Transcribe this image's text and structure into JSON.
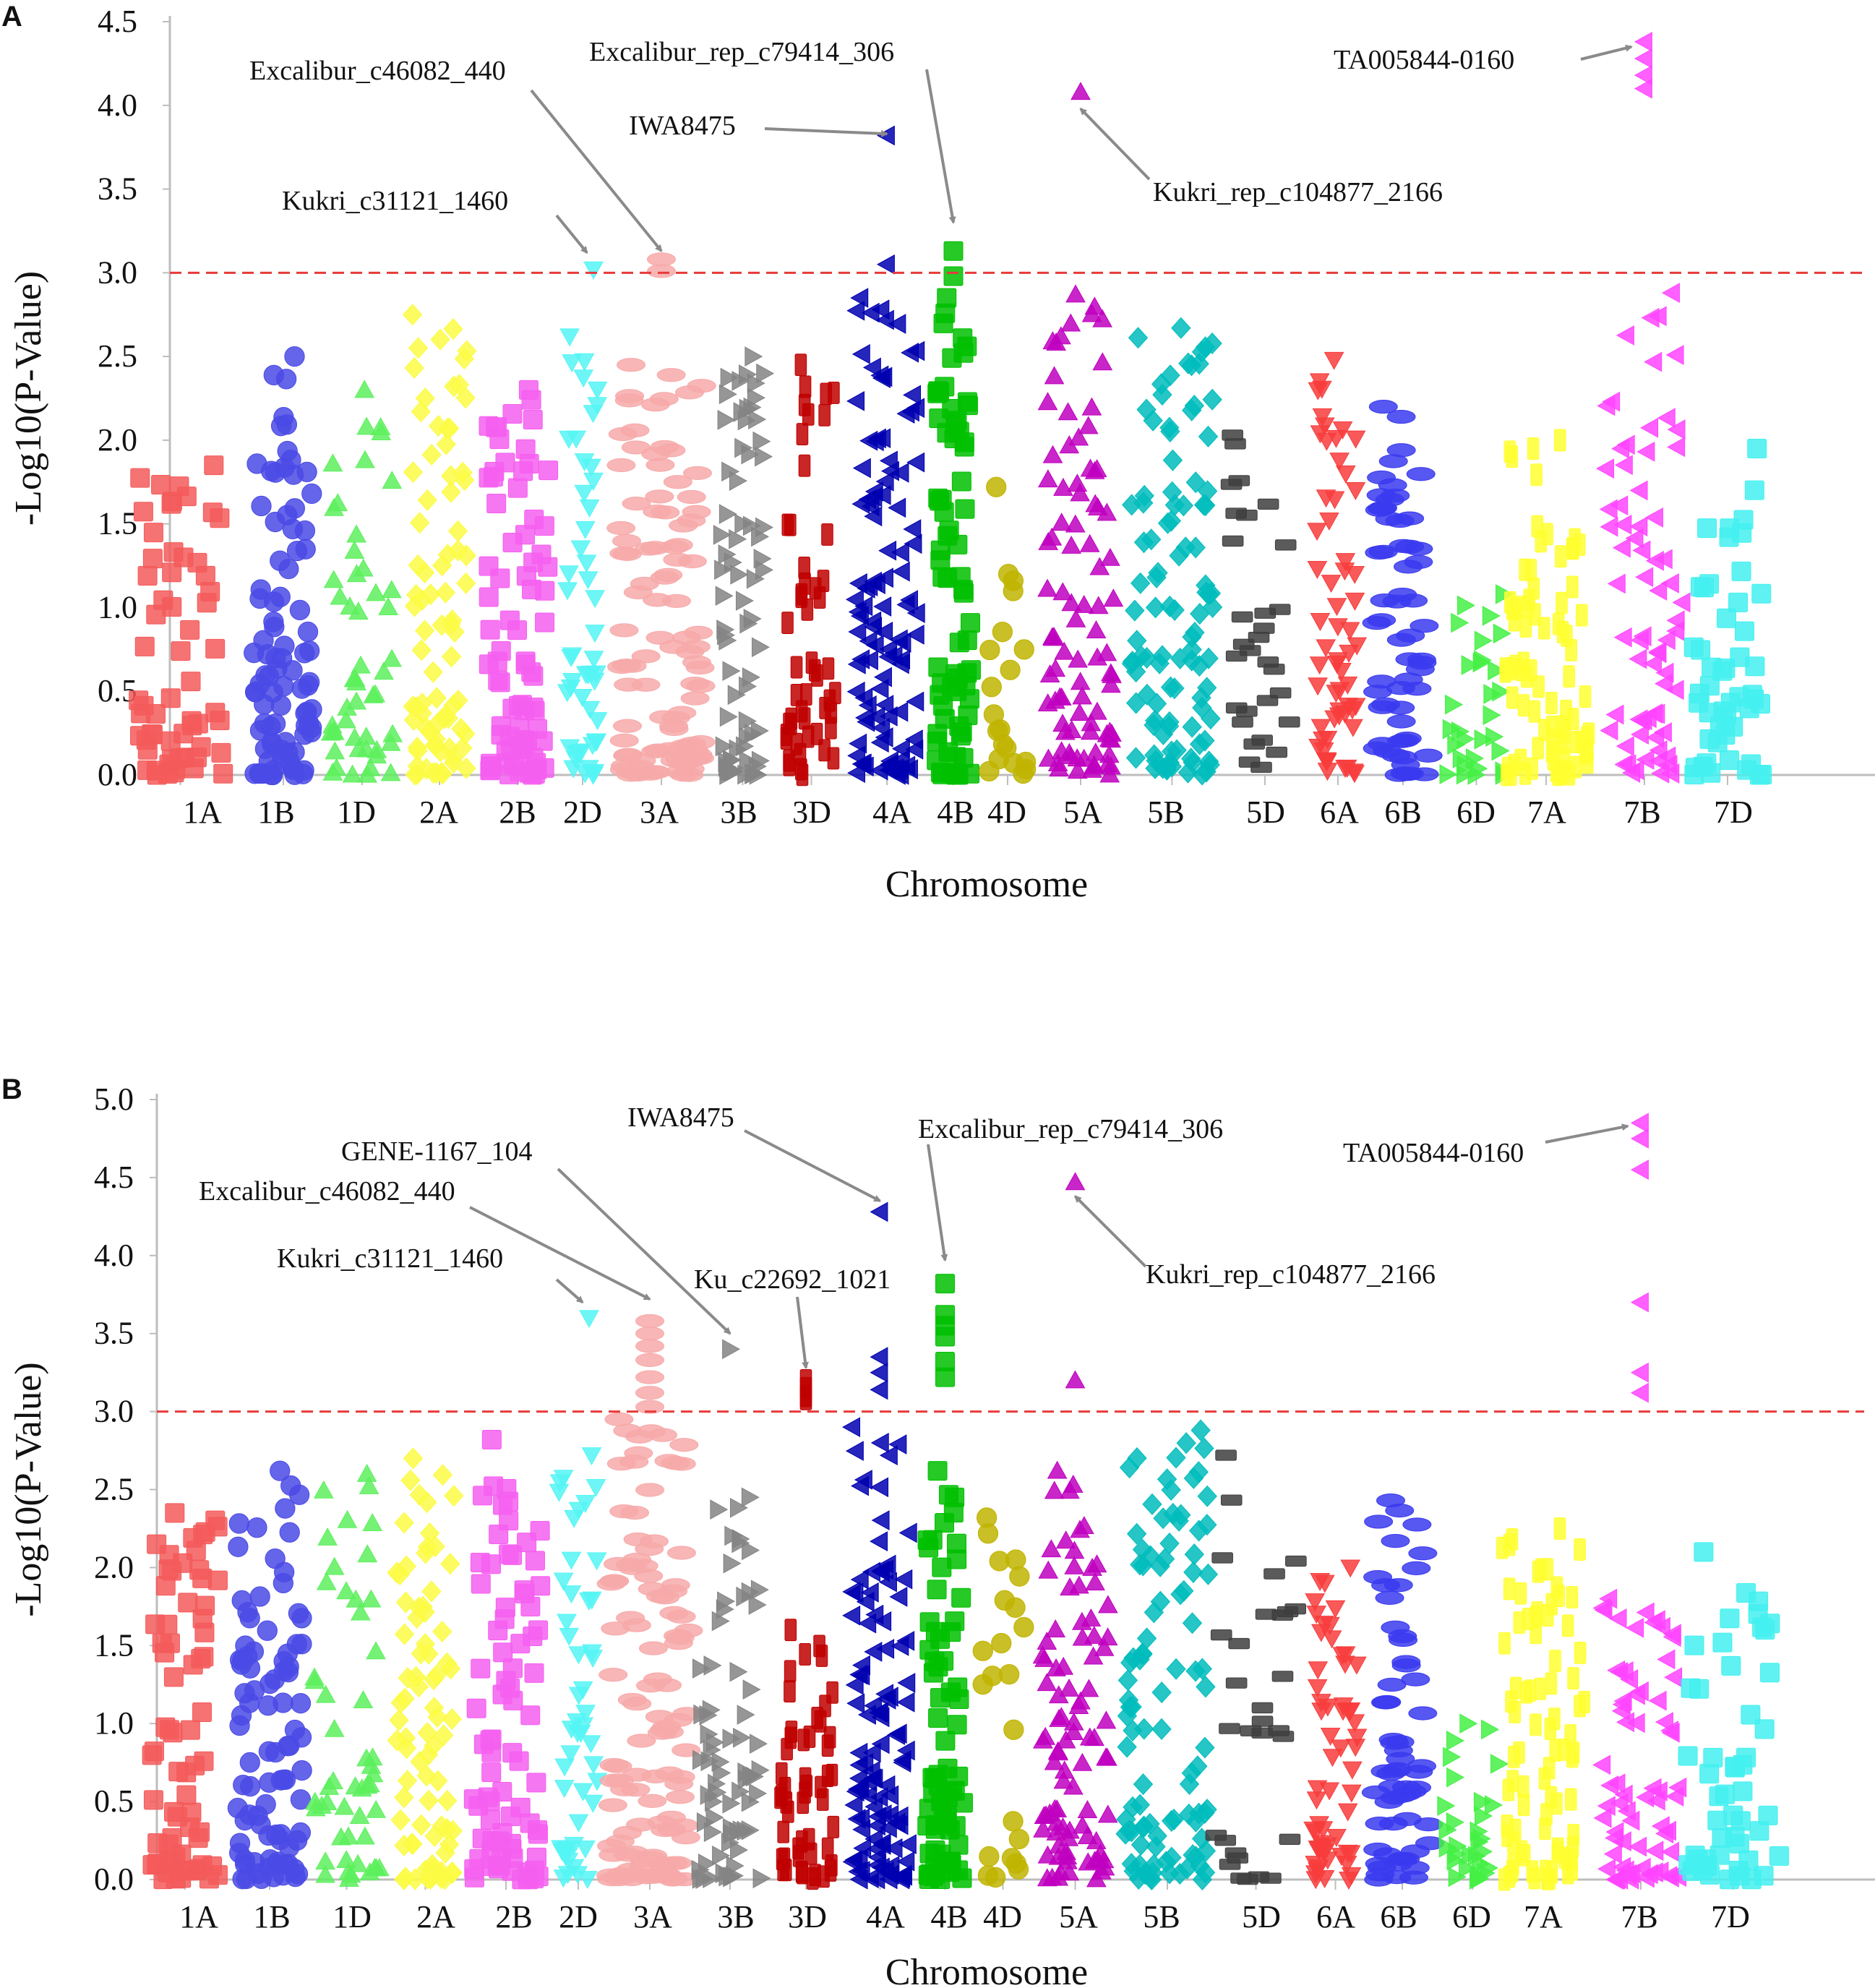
{
  "figure": {
    "panels": [
      "A",
      "B"
    ]
  },
  "colors": {
    "1A": "#f45b5b",
    "1B": "#4a4ae6",
    "1D": "#5df05d",
    "2A": "#fbfb45",
    "2B": "#f55ff0",
    "2D": "#55f5f5",
    "3A": "#f7a9a9",
    "3B": "#848484",
    "3D": "#bf0000",
    "4A": "#0000b0",
    "4B": "#00c000",
    "4D": "#c0b400",
    "5A": "#c000c0",
    "5B": "#00bcbc",
    "5D": "#3e3e3e",
    "6A": "#f83c3c",
    "6B": "#3a3af0",
    "6D": "#44f044",
    "7A": "#ffff30",
    "7B": "#ff44ff",
    "7D": "#44f0f0",
    "threshold": "#e83a3a",
    "arrow": "#8a8a8a"
  },
  "chart_data": [
    {
      "type": "scatter",
      "panel": "A",
      "xlabel": "Chromosome",
      "ylabel": "-Log10(P-Value)",
      "ylim": [
        0.0,
        4.5
      ],
      "yticks": [
        "0.0",
        "0.5",
        "1.0",
        "1.5",
        "2.0",
        "2.5",
        "3.0",
        "3.5",
        "4.0",
        "4.5"
      ],
      "threshold": 3.0,
      "categories": [
        "1A",
        "1B",
        "1D",
        "2A",
        "2B",
        "2D",
        "3A",
        "3B",
        "3D",
        "4A",
        "4B",
        "4D",
        "5A",
        "5B",
        "5D",
        "6A",
        "6B",
        "6D",
        "7A",
        "7B",
        "7D"
      ],
      "series": [
        {
          "name": "1A",
          "shape": "square",
          "max": 1.85,
          "count": 60
        },
        {
          "name": "1B",
          "shape": "circle",
          "max": 2.5,
          "count": 90
        },
        {
          "name": "1D",
          "shape": "triangle-up",
          "max": 2.3,
          "count": 50
        },
        {
          "name": "2A",
          "shape": "diamond",
          "max": 2.75,
          "count": 80
        },
        {
          "name": "2B",
          "shape": "square",
          "max": 2.3,
          "count": 80
        },
        {
          "name": "2D",
          "shape": "triangle-down",
          "max": 2.62,
          "count": 50
        },
        {
          "name": "3A",
          "shape": "ellipse",
          "max": 2.45,
          "count": 100
        },
        {
          "name": "3B",
          "shape": "triangle-right",
          "max": 2.5,
          "count": 70
        },
        {
          "name": "3D",
          "shape": "rect-vertical",
          "max": 2.45,
          "count": 50
        },
        {
          "name": "4A",
          "shape": "triangle-left",
          "max": 2.85,
          "count": 110
        },
        {
          "name": "4B",
          "shape": "square",
          "max": 2.85,
          "count": 70
        },
        {
          "name": "4D",
          "shape": "circle",
          "max": 1.72,
          "count": 20
        },
        {
          "name": "5A",
          "shape": "triangle-up",
          "max": 2.87,
          "count": 90
        },
        {
          "name": "5B",
          "shape": "diamond",
          "max": 2.67,
          "count": 100
        },
        {
          "name": "5D",
          "shape": "rect-horizontal",
          "max": 2.03,
          "count": 30
        },
        {
          "name": "6A",
          "shape": "triangle-down",
          "max": 2.48,
          "count": 60
        },
        {
          "name": "6B",
          "shape": "ellipse",
          "max": 2.2,
          "count": 60
        },
        {
          "name": "6D",
          "shape": "triangle-right",
          "max": 1.08,
          "count": 30
        },
        {
          "name": "7A",
          "shape": "rect-vertical",
          "max": 2.0,
          "count": 80
        },
        {
          "name": "7B",
          "shape": "triangle-left",
          "max": 2.88,
          "count": 70
        },
        {
          "name": "7D",
          "shape": "square",
          "max": 1.95,
          "count": 50
        }
      ],
      "highlights": [
        {
          "chrom": "2D",
          "shape": "triangle-down",
          "y": 3.02
        },
        {
          "chrom": "3A",
          "shape": "ellipse",
          "y": 3.08
        },
        {
          "chrom": "3A",
          "shape": "ellipse",
          "y": 3.01
        },
        {
          "chrom": "4A",
          "shape": "triangle-left",
          "y": 3.82
        },
        {
          "chrom": "4A",
          "shape": "triangle-left",
          "y": 3.05
        },
        {
          "chrom": "4B",
          "shape": "square",
          "y": 3.13
        },
        {
          "chrom": "4B",
          "shape": "square",
          "y": 2.98
        },
        {
          "chrom": "5A",
          "shape": "triangle-up",
          "y": 4.08
        },
        {
          "chrom": "7B",
          "shape": "triangle-left",
          "y": 4.38
        },
        {
          "chrom": "7B",
          "shape": "triangle-left",
          "y": 4.28
        },
        {
          "chrom": "7B",
          "shape": "triangle-left",
          "y": 4.18
        },
        {
          "chrom": "7B",
          "shape": "triangle-left",
          "y": 4.1
        }
      ],
      "annotations": [
        {
          "text": "Excalibur_c46082_440",
          "target_chrom": "3A",
          "target_y": 3.13
        },
        {
          "text": "Excalibur_rep_c79414_306",
          "target_chrom": "4B",
          "target_y": 3.3
        },
        {
          "text": "IWA8475",
          "target_chrom": "4A",
          "target_y": 3.83
        },
        {
          "text": "Kukri_c31121_1460",
          "target_chrom": "2D",
          "target_y": 3.12
        },
        {
          "text": "TA005844-0160",
          "target_chrom": "7B",
          "target_y": 4.35
        },
        {
          "text": "Kukri_rep_c104877_2166",
          "target_chrom": "5A",
          "target_y": 3.98
        }
      ]
    },
    {
      "type": "scatter",
      "panel": "B",
      "xlabel": "Chromosome",
      "ylabel": "-Log10(P-Value)",
      "ylim": [
        0.0,
        5.0
      ],
      "yticks": [
        "0.0",
        "0.5",
        "1.0",
        "1.5",
        "2.0",
        "2.5",
        "3.0",
        "3.5",
        "4.0",
        "4.5",
        "5.0"
      ],
      "threshold": 3.0,
      "categories": [
        "1A",
        "1B",
        "1D",
        "2A",
        "2B",
        "2D",
        "3A",
        "3B",
        "3D",
        "4A",
        "4B",
        "4D",
        "5A",
        "5B",
        "5D",
        "6A",
        "6B",
        "6D",
        "7A",
        "7B",
        "7D"
      ],
      "series": [
        {
          "name": "1A",
          "shape": "square",
          "max": 2.35,
          "count": 70
        },
        {
          "name": "1B",
          "shape": "circle",
          "max": 2.62,
          "count": 90
        },
        {
          "name": "1D",
          "shape": "triangle-up",
          "max": 2.6,
          "count": 50
        },
        {
          "name": "2A",
          "shape": "diamond",
          "max": 2.7,
          "count": 80
        },
        {
          "name": "2B",
          "shape": "square",
          "max": 2.82,
          "count": 80
        },
        {
          "name": "2D",
          "shape": "triangle-down",
          "max": 2.72,
          "count": 50
        },
        {
          "name": "3A",
          "shape": "ellipse",
          "max": 2.95,
          "count": 110
        },
        {
          "name": "3B",
          "shape": "triangle-right",
          "max": 2.45,
          "count": 70
        },
        {
          "name": "3D",
          "shape": "rect-vertical",
          "max": 1.6,
          "count": 50
        },
        {
          "name": "4A",
          "shape": "triangle-left",
          "max": 2.9,
          "count": 110
        },
        {
          "name": "4B",
          "shape": "square",
          "max": 2.62,
          "count": 70
        },
        {
          "name": "4D",
          "shape": "circle",
          "max": 2.32,
          "count": 22
        },
        {
          "name": "5A",
          "shape": "triangle-up",
          "max": 2.62,
          "count": 90
        },
        {
          "name": "5B",
          "shape": "diamond",
          "max": 2.88,
          "count": 100
        },
        {
          "name": "5D",
          "shape": "rect-horizontal",
          "max": 2.72,
          "count": 30
        },
        {
          "name": "6A",
          "shape": "triangle-down",
          "max": 2.0,
          "count": 60
        },
        {
          "name": "6B",
          "shape": "ellipse",
          "max": 2.43,
          "count": 60
        },
        {
          "name": "6D",
          "shape": "triangle-right",
          "max": 1.0,
          "count": 30
        },
        {
          "name": "7A",
          "shape": "rect-vertical",
          "max": 2.25,
          "count": 80
        },
        {
          "name": "7B",
          "shape": "triangle-left",
          "max": 1.8,
          "count": 70
        },
        {
          "name": "7D",
          "shape": "square",
          "max": 2.1,
          "count": 50
        }
      ],
      "highlights": [
        {
          "chrom": "2D",
          "shape": "triangle-down",
          "y": 3.6
        },
        {
          "chrom": "3A",
          "shape": "ellipse",
          "y": 3.58
        },
        {
          "chrom": "3A",
          "shape": "ellipse",
          "y": 3.5
        },
        {
          "chrom": "3A",
          "shape": "ellipse",
          "y": 3.42
        },
        {
          "chrom": "3A",
          "shape": "ellipse",
          "y": 3.33
        },
        {
          "chrom": "3A",
          "shape": "ellipse",
          "y": 3.22
        },
        {
          "chrom": "3A",
          "shape": "ellipse",
          "y": 3.12
        },
        {
          "chrom": "3A",
          "shape": "ellipse",
          "y": 3.03
        },
        {
          "chrom": "3B",
          "shape": "triangle-right",
          "y": 3.4
        },
        {
          "chrom": "3D",
          "shape": "rect-vertical",
          "y": 3.2
        },
        {
          "chrom": "3D",
          "shape": "rect-vertical",
          "y": 3.15
        },
        {
          "chrom": "3D",
          "shape": "rect-vertical",
          "y": 3.1
        },
        {
          "chrom": "3D",
          "shape": "rect-vertical",
          "y": 3.08
        },
        {
          "chrom": "4A",
          "shape": "triangle-left",
          "y": 4.28
        },
        {
          "chrom": "4A",
          "shape": "triangle-left",
          "y": 3.35
        },
        {
          "chrom": "4A",
          "shape": "triangle-left",
          "y": 3.25
        },
        {
          "chrom": "4A",
          "shape": "triangle-left",
          "y": 3.14
        },
        {
          "chrom": "4B",
          "shape": "square",
          "y": 3.82
        },
        {
          "chrom": "4B",
          "shape": "square",
          "y": 3.62
        },
        {
          "chrom": "4B",
          "shape": "square",
          "y": 3.55
        },
        {
          "chrom": "4B",
          "shape": "square",
          "y": 3.48
        },
        {
          "chrom": "4B",
          "shape": "square",
          "y": 3.32
        },
        {
          "chrom": "4B",
          "shape": "square",
          "y": 3.22
        },
        {
          "chrom": "5A",
          "shape": "triangle-up",
          "y": 4.47
        },
        {
          "chrom": "5A",
          "shape": "triangle-up",
          "y": 3.2
        },
        {
          "chrom": "7B",
          "shape": "triangle-left",
          "y": 4.85
        },
        {
          "chrom": "7B",
          "shape": "triangle-left",
          "y": 4.75
        },
        {
          "chrom": "7B",
          "shape": "triangle-left",
          "y": 4.55
        },
        {
          "chrom": "7B",
          "shape": "triangle-left",
          "y": 3.7
        },
        {
          "chrom": "7B",
          "shape": "triangle-left",
          "y": 3.25
        },
        {
          "chrom": "7B",
          "shape": "triangle-left",
          "y": 3.12
        }
      ],
      "annotations": [
        {
          "text": "IWA8475",
          "target_chrom": "4A",
          "target_y": 4.35
        },
        {
          "text": "Excalibur_rep_c79414_306",
          "target_chrom": "4B",
          "target_y": 3.97
        },
        {
          "text": "TA005844-0160",
          "target_chrom": "7B",
          "target_y": 4.83
        },
        {
          "text": "GENE-1167_104",
          "target_chrom": "3B",
          "target_y": 3.5
        },
        {
          "text": "Excalibur_c46082_440",
          "target_chrom": "3A",
          "target_y": 3.72
        },
        {
          "text": "Kukri_c31121_1460",
          "target_chrom": "2D",
          "target_y": 3.7
        },
        {
          "text": "Ku_c22692_1021",
          "target_chrom": "3D",
          "target_y": 3.28
        },
        {
          "text": "Kukri_rep_c104877_2166",
          "target_chrom": "5A",
          "target_y": 4.38
        }
      ]
    }
  ]
}
